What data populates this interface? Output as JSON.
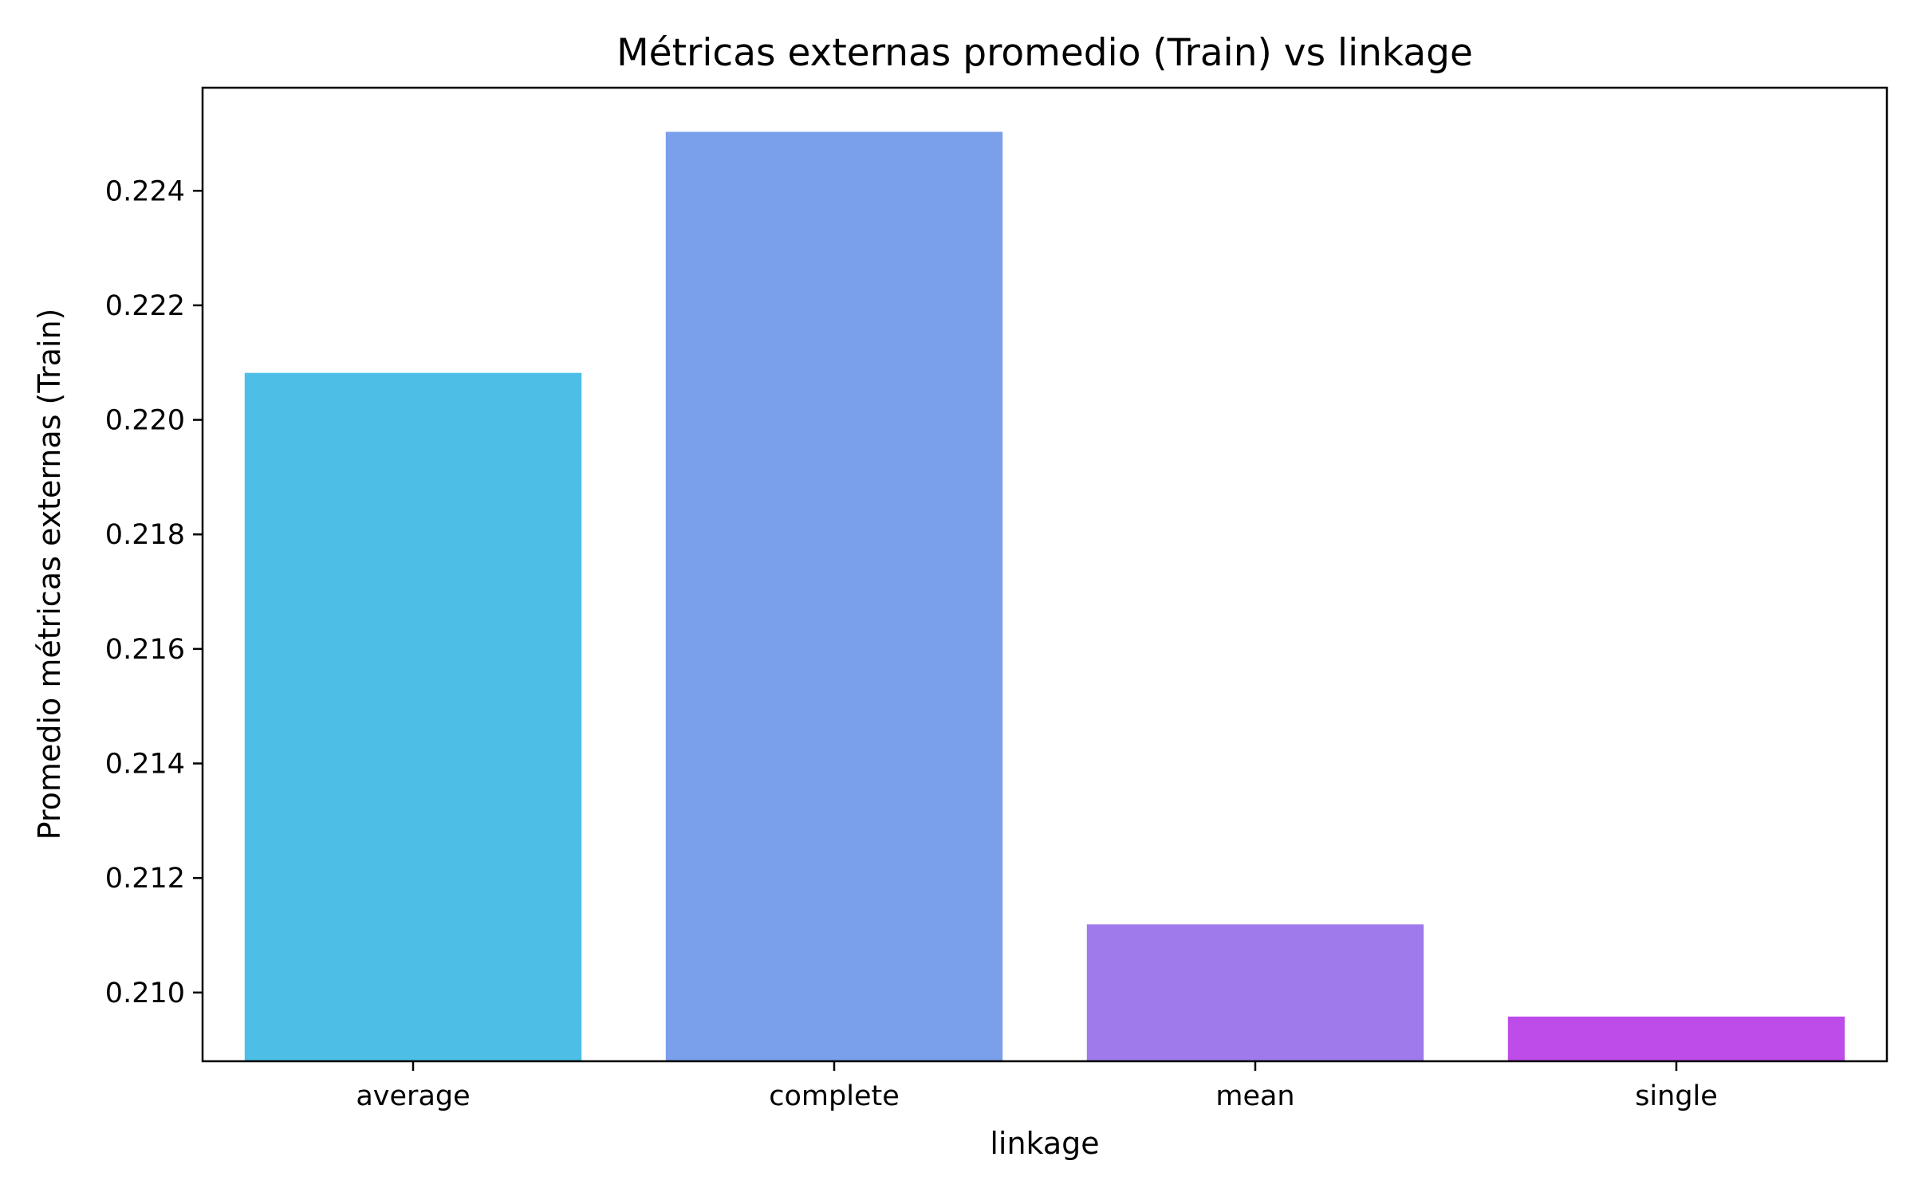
{
  "chart_data": {
    "type": "bar",
    "title": "Métricas externas promedio (Train) vs linkage",
    "xlabel": "linkage",
    "ylabel": "Promedio métricas externas (Train)",
    "categories": [
      "average",
      "complete",
      "mean",
      "single"
    ],
    "values": [
      0.22082,
      0.22503,
      0.21119,
      0.20958
    ],
    "colors": [
      "#4dbee6",
      "#7a9feb",
      "#9f7aeb",
      "#bd4ce8"
    ],
    "ylim": [
      0.2088,
      0.2258
    ],
    "yticks": [
      "0.210",
      "0.212",
      "0.214",
      "0.216",
      "0.218",
      "0.220",
      "0.222",
      "0.224"
    ],
    "grid": false,
    "legend": "none"
  }
}
